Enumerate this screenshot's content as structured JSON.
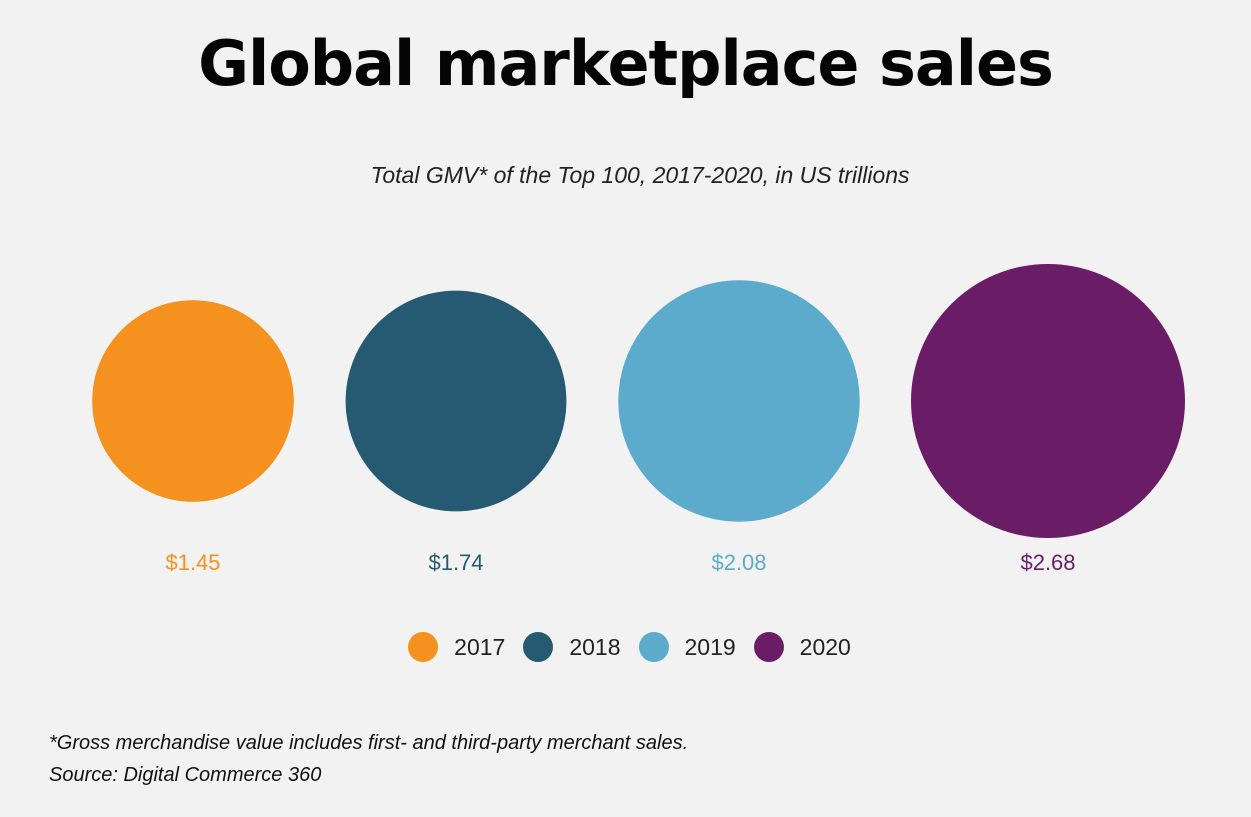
{
  "chart_data": {
    "type": "bubble",
    "title": "Global marketplace sales",
    "subtitle": "Total GMV* of the Top 100, 2017-2020, in US trillions",
    "categories": [
      "2017",
      "2018",
      "2019",
      "2020"
    ],
    "values": [
      1.45,
      1.74,
      2.08,
      2.68
    ],
    "value_labels": [
      "$1.45",
      "$1.74",
      "$2.08",
      "$2.68"
    ],
    "colors": [
      "#f5911e",
      "#265a72",
      "#5cabcd",
      "#6a1d66"
    ],
    "unit": "US trillions",
    "legend": [
      "2017",
      "2018",
      "2019",
      "2020"
    ],
    "legend_position": "bottom-center",
    "footnote": "*Gross merchandise value includes first- and third-party merchant sales.",
    "source": "Source: Digital Commerce 360"
  }
}
